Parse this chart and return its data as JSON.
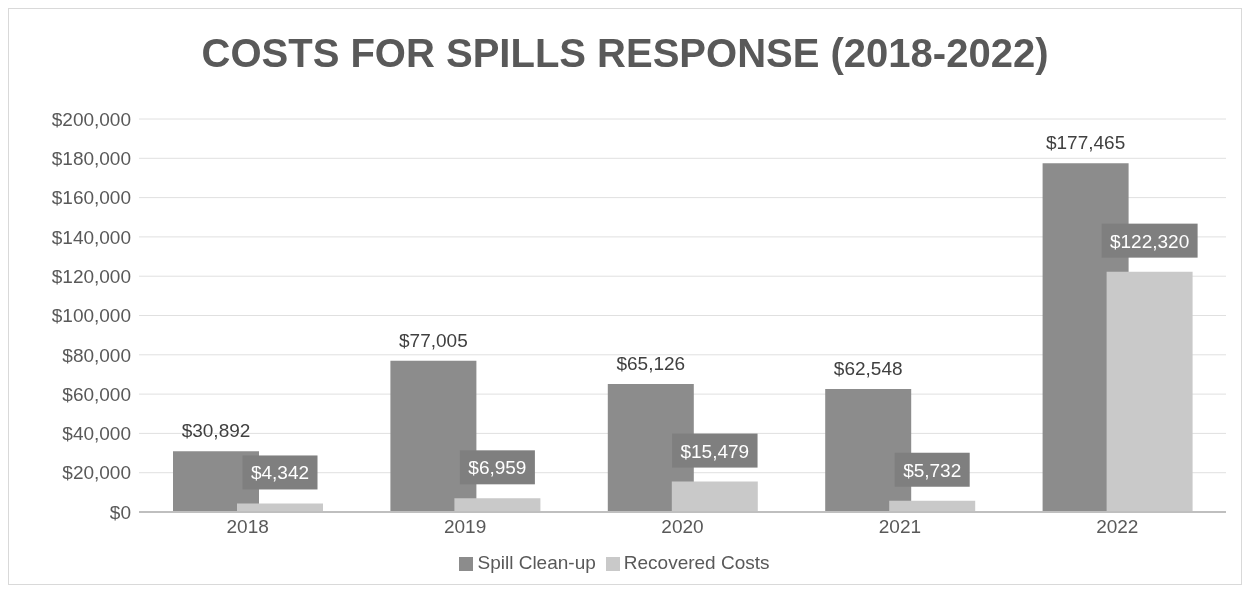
{
  "chart_data": {
    "type": "bar",
    "title": "COSTS FOR SPILLS RESPONSE (2018-2022)",
    "categories": [
      "2018",
      "2019",
      "2020",
      "2021",
      "2022"
    ],
    "series": [
      {
        "name": "Spill Clean-up",
        "color": "#8c8c8c",
        "values": [
          30892,
          77005,
          65126,
          62548,
          177465
        ],
        "value_labels": [
          "$30,892",
          "$77,005",
          "$65,126",
          "$62,548",
          "$177,465"
        ]
      },
      {
        "name": "Recovered Costs",
        "color": "#c9c9c9",
        "values": [
          4342,
          6959,
          15479,
          5732,
          122320
        ],
        "value_labels": [
          "$4,342",
          "$6,959",
          "$15,479",
          "$5,732",
          "$122,320"
        ]
      }
    ],
    "ylim": [
      0,
      200000
    ],
    "yticks": [
      {
        "value": 0,
        "label": "$0"
      },
      {
        "value": 20000,
        "label": "$20,000"
      },
      {
        "value": 40000,
        "label": "$40,000"
      },
      {
        "value": 60000,
        "label": "$60,000"
      },
      {
        "value": 80000,
        "label": "$80,000"
      },
      {
        "value": 100000,
        "label": "$100,000"
      },
      {
        "value": 120000,
        "label": "$120,000"
      },
      {
        "value": 140000,
        "label": "$140,000"
      },
      {
        "value": 160000,
        "label": "$160,000"
      },
      {
        "value": 180000,
        "label": "$180,000"
      },
      {
        "value": 200000,
        "label": "$200,000"
      }
    ],
    "grid": "y",
    "legend": "bottom"
  }
}
